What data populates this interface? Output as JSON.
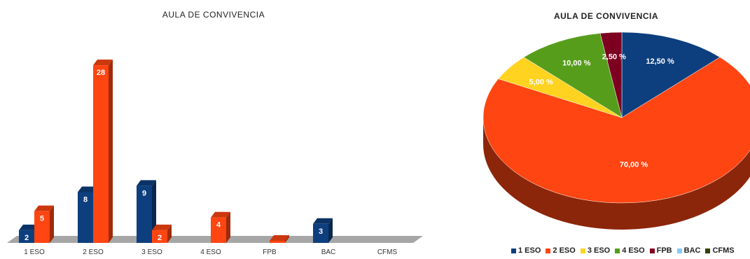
{
  "charts": {
    "bar_title": "AULA DE CONVIVENCIA",
    "pie_title": "AULA DE CONVIVENCIA"
  },
  "chart_data": [
    {
      "type": "bar",
      "title": "AULA DE CONVIVENCIA",
      "categories": [
        "1 ESO",
        "2 ESO",
        "3 ESO",
        "4 ESO",
        "FPB",
        "BAC",
        "CFMS"
      ],
      "series": [
        {
          "values": [
            2,
            8,
            9,
            null,
            null,
            3,
            null
          ],
          "color": "#0d3f7e"
        },
        {
          "values": [
            5,
            28,
            2,
            4,
            0,
            null,
            null
          ],
          "color": "#ff4512"
        }
      ],
      "data_labels": {
        "series0": [
          "2",
          "8",
          "9",
          "",
          "",
          "3",
          ""
        ],
        "series1": [
          "5",
          "28",
          "2",
          "4",
          "",
          "",
          ""
        ]
      },
      "ylim": [
        0,
        30
      ],
      "grid": false,
      "style": "3d"
    },
    {
      "type": "pie",
      "title": "AULA DE CONVIVENCIA",
      "labels": [
        "1 ESO",
        "2 ESO",
        "3 ESO",
        "4 ESO",
        "FPB",
        "BAC",
        "CFMS"
      ],
      "values": [
        12.5,
        70.0,
        5.0,
        10.0,
        2.5,
        0,
        0
      ],
      "value_labels": [
        "12,50 %",
        "70,00 %",
        "5,00 %",
        "10,00 %",
        "2,50 %",
        "",
        ""
      ],
      "colors": [
        "#0d3f7e",
        "#ff4512",
        "#ffd320",
        "#579d1c",
        "#7e0021",
        "#83caff",
        "#314004"
      ],
      "legend": "bottom",
      "style": "3d"
    }
  ]
}
